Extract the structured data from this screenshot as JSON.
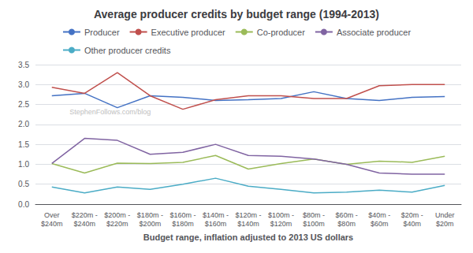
{
  "chart_data": {
    "type": "line",
    "title": "Average producer credits by budget range (1994-2013)",
    "xlabel": "Budget range, inflation adjusted to 2013 US dollars",
    "categories": [
      "Over\n$240m",
      "$220m -\n$240m",
      "$200m -\n$220m",
      "$180m -\n$200m",
      "$160m -\n$180m",
      "$140m -\n$160m",
      "$120m -\n$140m",
      "$100m -\n$120m",
      "$80m -\n$100m",
      "$60m -\n$80m",
      "$40m -\n$60m",
      "$20m -\n$40m",
      "Under\n$20m"
    ],
    "series": [
      {
        "name": "Producer",
        "color": "#4472C4",
        "values": [
          2.72,
          2.78,
          2.42,
          2.72,
          2.68,
          2.6,
          2.62,
          2.65,
          2.82,
          2.65,
          2.6,
          2.68,
          2.7
        ]
      },
      {
        "name": "Executive producer",
        "color": "#C0504D",
        "values": [
          2.93,
          2.78,
          3.3,
          2.72,
          2.38,
          2.62,
          2.72,
          2.72,
          2.65,
          2.65,
          2.97,
          3.0,
          3.0
        ]
      },
      {
        "name": "Co-producer",
        "color": "#9BBB59",
        "values": [
          1.02,
          0.78,
          1.03,
          1.02,
          1.05,
          1.22,
          0.88,
          1.02,
          1.13,
          1.0,
          1.08,
          1.05,
          1.2
        ]
      },
      {
        "name": "Associate producer",
        "color": "#8064A2",
        "values": [
          1.02,
          1.65,
          1.6,
          1.25,
          1.3,
          1.5,
          1.22,
          1.2,
          1.13,
          1.0,
          0.78,
          0.75,
          0.75
        ]
      },
      {
        "name": "Other producer credits",
        "color": "#4BACC6",
        "values": [
          0.43,
          0.28,
          0.43,
          0.37,
          0.5,
          0.65,
          0.45,
          0.37,
          0.28,
          0.3,
          0.35,
          0.3,
          0.47
        ]
      }
    ],
    "ylim": [
      0.0,
      3.5
    ],
    "yticks": [
      {
        "value": 0,
        "label": "0.0"
      },
      0.5,
      {
        "value": 1,
        "label": "1.0"
      },
      1.5,
      {
        "value": 2,
        "label": "2.0"
      },
      2.5,
      {
        "value": 3,
        "label": "3.0"
      },
      3.5
    ],
    "grid": true,
    "legend": "top",
    "annotations": [
      "StephenFollows.com/blog"
    ]
  }
}
